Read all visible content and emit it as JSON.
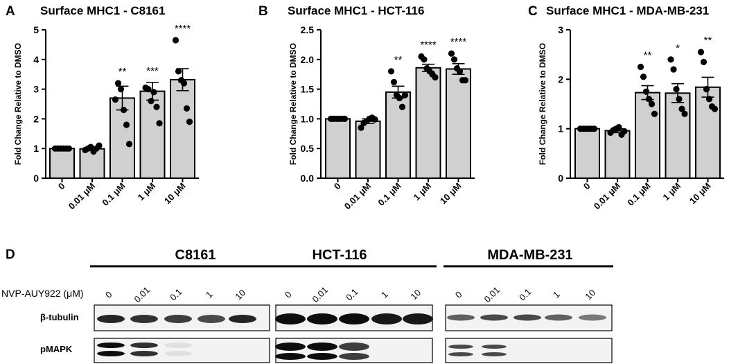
{
  "chart_data": [
    {
      "type": "bar",
      "panel_letter": "A",
      "title": "Surface MHC1 - C8161",
      "ylabel": "Fold Change Relative to DMSO",
      "xlabel": "",
      "categories": [
        "0",
        "0.01 μM",
        "0.1 μM",
        "1 μM",
        "10 μM"
      ],
      "ylim": [
        0,
        5
      ],
      "yticks": [
        "0",
        "1",
        "2",
        "3",
        "4",
        "5"
      ],
      "values": [
        1.0,
        0.99,
        2.7,
        2.93,
        3.32
      ],
      "errors": [
        0.0,
        0.04,
        0.4,
        0.3,
        0.37
      ],
      "points": [
        [
          1.0,
          1.0,
          1.0,
          1.0,
          1.0,
          1.0
        ],
        [
          0.95,
          1.0,
          1.05,
          0.9,
          1.0,
          1.1
        ],
        [
          2.65,
          3.2,
          3.0,
          2.3,
          1.8,
          1.15
        ],
        [
          3.05,
          3.0,
          2.6,
          2.9,
          2.4,
          1.85
        ],
        [
          4.65,
          3.6,
          3.3,
          3.2,
          2.35,
          1.9
        ]
      ],
      "significance": [
        "",
        "",
        "**",
        "***",
        "****"
      ]
    },
    {
      "type": "bar",
      "panel_letter": "B",
      "title": "Surface MHC1 - HCT-116",
      "ylabel": "Fold Change Relative to DMSO",
      "xlabel": "",
      "categories": [
        "0",
        "0.01 μM",
        "0.1 μM",
        "1 μM",
        "10 μM"
      ],
      "ylim": [
        0,
        2.5
      ],
      "yticks": [
        "0.0",
        "0.5",
        "1.0",
        "1.5",
        "2.0",
        "2.5"
      ],
      "values": [
        1.0,
        0.96,
        1.45,
        1.86,
        1.84
      ],
      "errors": [
        0.0,
        0.04,
        0.1,
        0.06,
        0.09
      ],
      "points": [
        [
          1.0,
          1.0,
          1.0,
          1.0,
          1.0,
          1.0
        ],
        [
          0.85,
          0.93,
          0.96,
          1.0,
          1.02,
          0.99
        ],
        [
          1.8,
          1.62,
          1.4,
          1.35,
          1.2,
          1.4
        ],
        [
          2.05,
          2.0,
          1.85,
          1.8,
          1.75,
          1.7
        ],
        [
          2.1,
          2.0,
          1.85,
          1.8,
          1.65,
          1.65
        ]
      ],
      "significance": [
        "",
        "",
        "**",
        "****",
        "****"
      ]
    },
    {
      "type": "bar",
      "panel_letter": "C",
      "title": "Surface MHC1 - MDA-MB-231",
      "ylabel": "Fold Change Relative to DMSO",
      "xlabel": "",
      "categories": [
        "0",
        "0.01 μM",
        "0.1 μM",
        "1 μM",
        "10 μM"
      ],
      "ylim": [
        0,
        3
      ],
      "yticks": [
        "0",
        "1",
        "2",
        "3"
      ],
      "values": [
        1.0,
        0.96,
        1.73,
        1.72,
        1.84
      ],
      "errors": [
        0.0,
        0.04,
        0.14,
        0.19,
        0.2
      ],
      "points": [
        [
          1.0,
          1.0,
          1.0,
          1.0,
          1.0,
          1.0
        ],
        [
          0.92,
          0.97,
          1.0,
          1.03,
          0.88,
          0.95
        ],
        [
          2.25,
          2.05,
          1.75,
          1.6,
          1.5,
          1.3
        ],
        [
          2.4,
          2.2,
          1.8,
          1.6,
          1.4,
          1.3
        ],
        [
          2.55,
          2.35,
          1.8,
          1.6,
          1.45,
          1.4
        ]
      ],
      "significance": [
        "",
        "",
        "**",
        "*",
        "**"
      ]
    }
  ],
  "blot": {
    "panel_letter": "D",
    "treatment_label": "NVP-AUY922 (μM)",
    "doses": [
      "0",
      "0.01",
      "0.1",
      "1",
      "10"
    ],
    "cell_lines": [
      "C8161",
      "HCT-116",
      "MDA-MB-231"
    ],
    "rows": [
      "β-tubulin",
      "pMAPK"
    ]
  }
}
